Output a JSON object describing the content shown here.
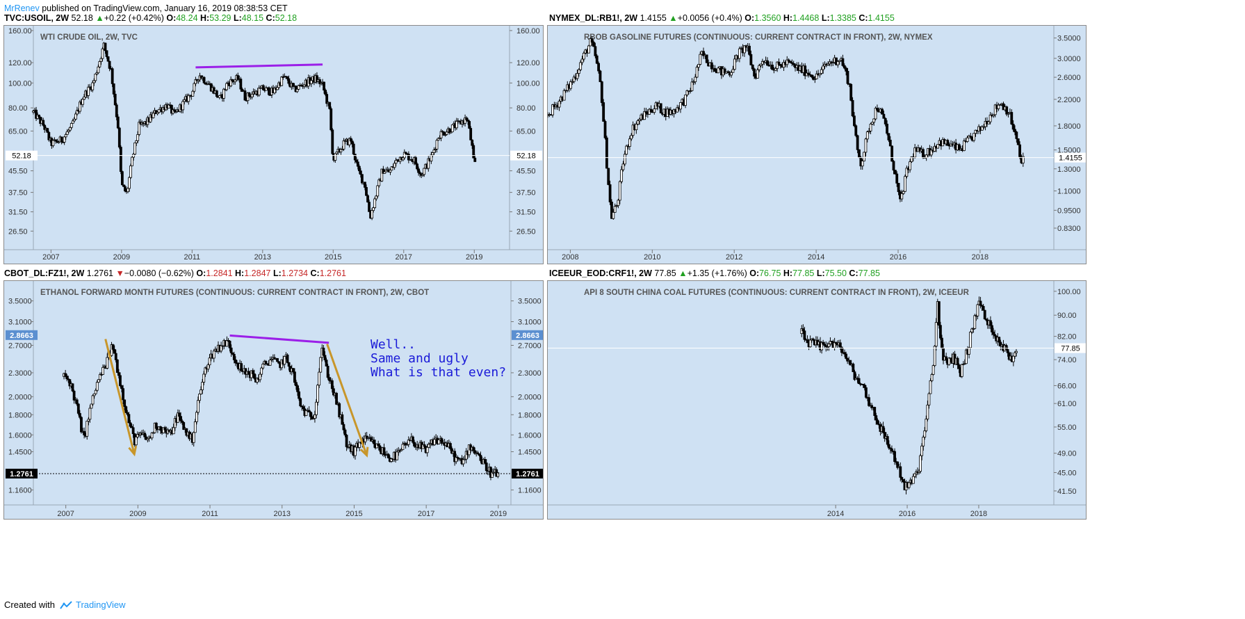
{
  "topbar": {
    "user": "MrRenev",
    "text": "published on TradingView.com, January 16, 2019 08:38:53 CET"
  },
  "footer": {
    "prefix": "Created with",
    "brand": "TradingView"
  },
  "colors": {
    "panel_bg": "#cfe1f3",
    "candle": "#000000",
    "purple_line": "#9b1fe8",
    "arrow": "#c8962a",
    "annotation": "#1a1ad8",
    "up": "#20a020",
    "down": "#c62828"
  },
  "panels": [
    {
      "header": {
        "symbol": "TVC:USOIL, 2W",
        "last": "52.18",
        "dir": "up",
        "change": "+0.22 (+0.42%)",
        "O": "48.24",
        "H": "53.29",
        "L": "48.15",
        "C": "52.18"
      },
      "title": "WTI CRUDE OIL, 2W, TVC",
      "price_label": "52.18",
      "chart_data": {
        "type": "candlestick",
        "title": "WTI CRUDE OIL, 2W, TVC",
        "y_ticks": [
          "160.00",
          "120.00",
          "100.00",
          "80.00",
          "65.00",
          "52.18",
          "45.50",
          "37.50",
          "31.50",
          "26.50"
        ],
        "y_tick_values": [
          160,
          120,
          100,
          80,
          65,
          52.18,
          45.5,
          37.5,
          31.5,
          26.5
        ],
        "y_scale": "log",
        "ylim": [
          23,
          165
        ],
        "x_ticks": [
          "2007",
          "2009",
          "2011",
          "2013",
          "2015",
          "2017",
          "2019"
        ],
        "x_tick_values": [
          2007,
          2009,
          2011,
          2013,
          2015,
          2017,
          2019
        ],
        "xlim": [
          2006.5,
          2020.0
        ],
        "last_value": 52.18,
        "series_path": [
          [
            2006.5,
            77
          ],
          [
            2006.8,
            68
          ],
          [
            2007.0,
            58
          ],
          [
            2007.3,
            60
          ],
          [
            2007.6,
            68
          ],
          [
            2007.9,
            88
          ],
          [
            2008.2,
            100
          ],
          [
            2008.5,
            140
          ],
          [
            2008.7,
            112
          ],
          [
            2008.9,
            68
          ],
          [
            2009.0,
            40
          ],
          [
            2009.15,
            37
          ],
          [
            2009.3,
            50
          ],
          [
            2009.5,
            68
          ],
          [
            2009.7,
            70
          ],
          [
            2010.0,
            78
          ],
          [
            2010.3,
            82
          ],
          [
            2010.5,
            75
          ],
          [
            2010.8,
            85
          ],
          [
            2011.0,
            92
          ],
          [
            2011.2,
            108
          ],
          [
            2011.5,
            98
          ],
          [
            2011.8,
            86
          ],
          [
            2012.0,
            100
          ],
          [
            2012.3,
            104
          ],
          [
            2012.5,
            88
          ],
          [
            2012.8,
            92
          ],
          [
            2013.0,
            95
          ],
          [
            2013.3,
            92
          ],
          [
            2013.6,
            106
          ],
          [
            2013.9,
            94
          ],
          [
            2014.2,
            100
          ],
          [
            2014.5,
            104
          ],
          [
            2014.7,
            98
          ],
          [
            2014.9,
            78
          ],
          [
            2015.0,
            50
          ],
          [
            2015.3,
            58
          ],
          [
            2015.5,
            60
          ],
          [
            2015.7,
            46
          ],
          [
            2015.9,
            40
          ],
          [
            2016.05,
            30
          ],
          [
            2016.2,
            36
          ],
          [
            2016.4,
            46
          ],
          [
            2016.6,
            45
          ],
          [
            2016.8,
            50
          ],
          [
            2017.0,
            53
          ],
          [
            2017.3,
            50
          ],
          [
            2017.5,
            44
          ],
          [
            2017.8,
            52
          ],
          [
            2018.0,
            63
          ],
          [
            2018.3,
            66
          ],
          [
            2018.6,
            70
          ],
          [
            2018.8,
            73
          ],
          [
            2018.95,
            55
          ],
          [
            2019.0,
            46
          ],
          [
            2019.05,
            52
          ]
        ],
        "trendline": {
          "x": [
            2011.1,
            2014.7
          ],
          "y": [
            115,
            118
          ]
        }
      }
    },
    {
      "header": {
        "symbol": "NYMEX_DL:RB1!, 2W",
        "last": "1.4155",
        "dir": "up",
        "change": "+0.0056 (+0.4%)",
        "O": "1.3560",
        "H": "1.4468",
        "L": "1.3385",
        "C": "1.4155"
      },
      "title": "RBOB GASOLINE FUTURES (CONTINUOUS: CURRENT CONTRACT IN FRONT), 2W, NYMEX",
      "price_label": "1.4155",
      "chart_data": {
        "type": "candlestick",
        "title": "RBOB GASOLINE FUTURES (CONTINUOUS: CURRENT CONTRACT IN FRONT), 2W, NYMEX",
        "y_ticks": [
          "3.5000",
          "3.0000",
          "2.6000",
          "2.2000",
          "1.8000",
          "1.5000",
          "1.4155",
          "1.3000",
          "1.1000",
          "0.9500",
          "0.8300"
        ],
        "y_tick_values": [
          3.5,
          3.0,
          2.6,
          2.2,
          1.8,
          1.5,
          1.4155,
          1.3,
          1.1,
          0.95,
          0.83
        ],
        "y_scale": "log",
        "ylim": [
          0.72,
          3.8
        ],
        "x_ticks": [
          "2008",
          "2010",
          "2012",
          "2014",
          "2016",
          "2018"
        ],
        "x_tick_values": [
          2008,
          2010,
          2012,
          2014,
          2016,
          2018
        ],
        "xlim": [
          2007.45,
          2019.8
        ],
        "last_value": 1.4155,
        "series_path": [
          [
            2007.45,
            1.95
          ],
          [
            2007.7,
            2.15
          ],
          [
            2007.9,
            2.35
          ],
          [
            2008.1,
            2.6
          ],
          [
            2008.3,
            3.0
          ],
          [
            2008.5,
            3.4
          ],
          [
            2008.6,
            3.1
          ],
          [
            2008.75,
            2.4
          ],
          [
            2008.9,
            1.3
          ],
          [
            2009.0,
            0.9
          ],
          [
            2009.15,
            1.0
          ],
          [
            2009.3,
            1.4
          ],
          [
            2009.5,
            1.75
          ],
          [
            2009.7,
            1.9
          ],
          [
            2009.9,
            2.0
          ],
          [
            2010.1,
            2.1
          ],
          [
            2010.3,
            2.0
          ],
          [
            2010.5,
            2.0
          ],
          [
            2010.8,
            2.2
          ],
          [
            2011.0,
            2.5
          ],
          [
            2011.2,
            3.1
          ],
          [
            2011.4,
            2.9
          ],
          [
            2011.7,
            2.7
          ],
          [
            2011.9,
            2.7
          ],
          [
            2012.1,
            3.1
          ],
          [
            2012.3,
            3.3
          ],
          [
            2012.5,
            2.6
          ],
          [
            2012.7,
            3.0
          ],
          [
            2013.0,
            2.8
          ],
          [
            2013.3,
            2.9
          ],
          [
            2013.5,
            2.8
          ],
          [
            2013.8,
            2.7
          ],
          [
            2014.0,
            2.6
          ],
          [
            2014.3,
            2.9
          ],
          [
            2014.6,
            3.0
          ],
          [
            2014.8,
            2.5
          ],
          [
            2015.0,
            1.5
          ],
          [
            2015.1,
            1.35
          ],
          [
            2015.3,
            1.8
          ],
          [
            2015.5,
            2.1
          ],
          [
            2015.7,
            1.8
          ],
          [
            2015.9,
            1.3
          ],
          [
            2016.05,
            1.0
          ],
          [
            2016.2,
            1.25
          ],
          [
            2016.4,
            1.5
          ],
          [
            2016.6,
            1.45
          ],
          [
            2016.8,
            1.5
          ],
          [
            2017.0,
            1.6
          ],
          [
            2017.3,
            1.55
          ],
          [
            2017.5,
            1.5
          ],
          [
            2017.8,
            1.65
          ],
          [
            2018.0,
            1.75
          ],
          [
            2018.3,
            2.0
          ],
          [
            2018.5,
            2.15
          ],
          [
            2018.7,
            2.0
          ],
          [
            2018.9,
            1.6
          ],
          [
            2019.0,
            1.35
          ],
          [
            2019.05,
            1.42
          ]
        ]
      }
    },
    {
      "header": {
        "symbol": "CBOT_DL:FZ1!, 2W",
        "last": "1.2761",
        "dir": "down",
        "change": "−0.0080 (−0.62%)",
        "O": "1.2841",
        "H": "1.2847",
        "L": "1.2734",
        "C": "1.2761"
      },
      "title": "ETHANOL FORWARD MONTH FUTURES (CONTINUOUS: CURRENT CONTRACT IN FRONT), 2W, CBOT",
      "price_label": "1.2761",
      "price_label_2": "2.8663",
      "annotation": [
        "Well..",
        "Same and ugly",
        "What is that even?"
      ],
      "chart_data": {
        "type": "candlestick",
        "title": "ETHANOL FORWARD MONTH FUTURES (CONTINUOUS: CURRENT CONTRACT IN FRONT), 2W, CBOT",
        "y_ticks": [
          "3.5000",
          "3.1000",
          "2.8663",
          "2.7000",
          "2.3000",
          "2.0000",
          "1.8000",
          "1.6000",
          "1.4500",
          "1.2761",
          "1.1600"
        ],
        "y_tick_values": [
          3.5,
          3.1,
          2.8663,
          2.7,
          2.3,
          2.0,
          1.8,
          1.6,
          1.45,
          1.2761,
          1.16
        ],
        "y_scale": "log",
        "ylim": [
          1.08,
          3.9
        ],
        "x_ticks": [
          "2007",
          "2009",
          "2011",
          "2013",
          "2015",
          "2017",
          "2019"
        ],
        "x_tick_values": [
          2007,
          2009,
          2011,
          2013,
          2015,
          2017,
          2019
        ],
        "xlim": [
          2006.1,
          2019.35
        ],
        "last_value": 1.2761,
        "series_path": [
          [
            2006.95,
            2.25
          ],
          [
            2007.1,
            2.2
          ],
          [
            2007.3,
            1.9
          ],
          [
            2007.5,
            1.55
          ],
          [
            2007.7,
            1.9
          ],
          [
            2007.9,
            2.2
          ],
          [
            2008.1,
            2.4
          ],
          [
            2008.3,
            2.7
          ],
          [
            2008.5,
            2.2
          ],
          [
            2008.7,
            1.8
          ],
          [
            2008.9,
            1.55
          ],
          [
            2009.1,
            1.6
          ],
          [
            2009.3,
            1.55
          ],
          [
            2009.5,
            1.7
          ],
          [
            2009.7,
            1.65
          ],
          [
            2009.9,
            1.6
          ],
          [
            2010.1,
            1.8
          ],
          [
            2010.3,
            1.65
          ],
          [
            2010.5,
            1.55
          ],
          [
            2010.7,
            2.0
          ],
          [
            2010.9,
            2.4
          ],
          [
            2011.1,
            2.6
          ],
          [
            2011.3,
            2.7
          ],
          [
            2011.5,
            2.75
          ],
          [
            2011.7,
            2.5
          ],
          [
            2011.9,
            2.3
          ],
          [
            2012.1,
            2.3
          ],
          [
            2012.3,
            2.2
          ],
          [
            2012.5,
            2.4
          ],
          [
            2012.7,
            2.5
          ],
          [
            2012.9,
            2.4
          ],
          [
            2013.1,
            2.5
          ],
          [
            2013.3,
            2.3
          ],
          [
            2013.5,
            1.9
          ],
          [
            2013.7,
            1.8
          ],
          [
            2013.9,
            1.8
          ],
          [
            2014.1,
            2.7
          ],
          [
            2014.2,
            2.4
          ],
          [
            2014.4,
            2.1
          ],
          [
            2014.6,
            1.8
          ],
          [
            2014.8,
            1.5
          ],
          [
            2015.0,
            1.45
          ],
          [
            2015.2,
            1.55
          ],
          [
            2015.4,
            1.55
          ],
          [
            2015.6,
            1.5
          ],
          [
            2015.8,
            1.45
          ],
          [
            2016.0,
            1.4
          ],
          [
            2016.2,
            1.42
          ],
          [
            2016.4,
            1.5
          ],
          [
            2016.6,
            1.55
          ],
          [
            2016.8,
            1.5
          ],
          [
            2017.0,
            1.45
          ],
          [
            2017.2,
            1.55
          ],
          [
            2017.4,
            1.55
          ],
          [
            2017.6,
            1.5
          ],
          [
            2017.8,
            1.4
          ],
          [
            2018.0,
            1.35
          ],
          [
            2018.2,
            1.5
          ],
          [
            2018.4,
            1.45
          ],
          [
            2018.6,
            1.35
          ],
          [
            2018.8,
            1.28
          ],
          [
            2019.0,
            1.27
          ]
        ],
        "trendline": {
          "x": [
            2011.55,
            2014.3
          ],
          "y": [
            2.86,
            2.74
          ]
        },
        "arrows": [
          {
            "x": [
              2008.1,
              2008.9
            ],
            "y": [
              2.8,
              1.43
            ]
          },
          {
            "x": [
              2014.25,
              2015.35
            ],
            "y": [
              2.72,
              1.42
            ]
          }
        ]
      }
    },
    {
      "header": {
        "symbol": "ICEEUR_EOD:CRF1!, 2W",
        "last": "77.85",
        "dir": "up",
        "change": "+1.35 (+1.76%)",
        "O": "76.75",
        "H": "77.85",
        "L": "75.50",
        "C": "77.85"
      },
      "title": "API 8 SOUTH CHINA COAL FUTURES (CONTINUOUS: CURRENT CONTRACT IN FRONT), 2W, ICEEUR",
      "price_label": "77.85",
      "chart_data": {
        "type": "candlestick",
        "title": "API 8 SOUTH CHINA COAL FUTURES (CONTINUOUS: CURRENT CONTRACT IN FRONT), 2W, ICEEUR",
        "y_ticks": [
          "100.00",
          "90.00",
          "82.00",
          "77.85",
          "74.00",
          "66.00",
          "61.00",
          "55.00",
          "49.00",
          "45.00",
          "41.50"
        ],
        "y_tick_values": [
          100,
          90,
          82,
          77.85,
          74,
          66,
          61,
          55,
          49,
          45,
          41.5
        ],
        "y_scale": "log",
        "ylim": [
          39.5,
          104
        ],
        "x_ticks": [
          "2014",
          "2016",
          "2018"
        ],
        "x_tick_values": [
          2014,
          2016,
          2018
        ],
        "xlim": [
          2005.95,
          2020.1
        ],
        "last_value": 77.85,
        "series_path": [
          [
            2013.05,
            83
          ],
          [
            2013.2,
            80
          ],
          [
            2013.4,
            79
          ],
          [
            2013.6,
            78
          ],
          [
            2013.8,
            80
          ],
          [
            2014.0,
            79
          ],
          [
            2014.2,
            77
          ],
          [
            2014.4,
            72
          ],
          [
            2014.6,
            68
          ],
          [
            2014.8,
            65
          ],
          [
            2015.0,
            60
          ],
          [
            2015.2,
            56
          ],
          [
            2015.4,
            52
          ],
          [
            2015.6,
            49
          ],
          [
            2015.8,
            45
          ],
          [
            2015.95,
            42
          ],
          [
            2016.1,
            43
          ],
          [
            2016.3,
            45
          ],
          [
            2016.45,
            52
          ],
          [
            2016.6,
            62
          ],
          [
            2016.75,
            75
          ],
          [
            2016.85,
            95
          ],
          [
            2016.95,
            78
          ],
          [
            2017.1,
            72
          ],
          [
            2017.3,
            75
          ],
          [
            2017.5,
            70
          ],
          [
            2017.7,
            78
          ],
          [
            2017.85,
            86
          ],
          [
            2018.0,
            96
          ],
          [
            2018.2,
            88
          ],
          [
            2018.4,
            84
          ],
          [
            2018.6,
            80
          ],
          [
            2018.8,
            76
          ],
          [
            2018.95,
            74
          ],
          [
            2019.05,
            78
          ]
        ]
      }
    }
  ]
}
